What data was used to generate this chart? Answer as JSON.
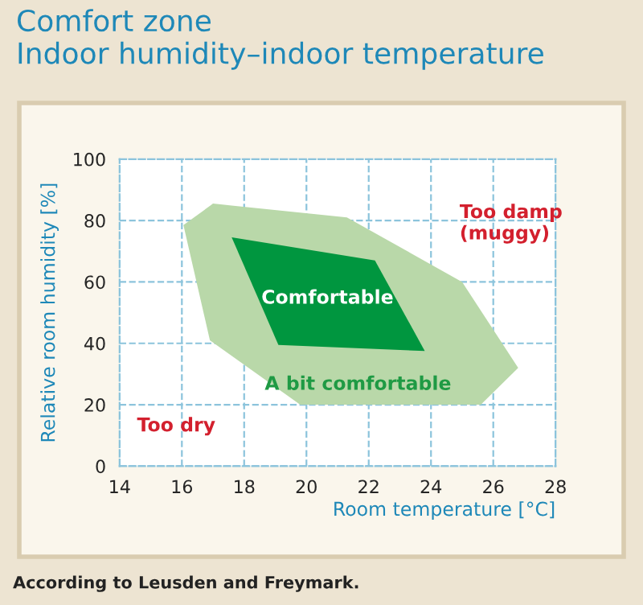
{
  "chart_data": {
    "type": "area",
    "title": "Comfort zone\nIndoor humidity–indoor temperature",
    "xlabel": "Room temperature [°C]",
    "ylabel": "Relative room humidity [%]",
    "series": [
      {
        "name": "A bit comfortable",
        "color": "#b9d8a9",
        "x": [
          16.05,
          17.0,
          21.3,
          25.0,
          26.8,
          25.6,
          19.8,
          16.9
        ],
        "values": [
          78.5,
          85.5,
          81,
          60,
          32,
          20,
          20,
          41
        ]
      },
      {
        "name": "Comfortable",
        "color": "#00963f",
        "x": [
          17.6,
          22.2,
          23.8,
          19.1
        ],
        "values": [
          74.5,
          67,
          37.5,
          39.5
        ]
      }
    ],
    "annotations": [
      "Too damp\n(muggy)",
      "Too dry",
      "According to Leusden and Freymark."
    ],
    "xlim": [
      14,
      28
    ],
    "xticks": [
      14,
      16,
      18,
      20,
      22,
      24,
      26,
      28
    ],
    "ylim": [
      0,
      100
    ],
    "yticks": [
      0,
      20,
      40,
      60,
      80,
      100
    ],
    "grid": true
  }
}
